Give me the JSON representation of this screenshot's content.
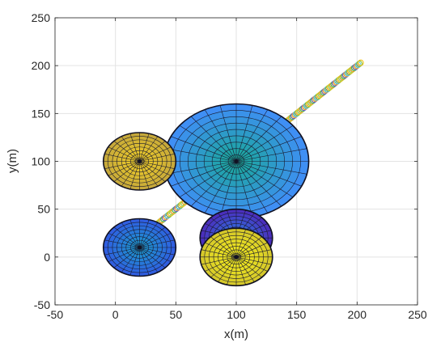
{
  "chart_data": {
    "type": "scatter",
    "title": "",
    "xlabel": "x(m)",
    "ylabel": "y(m)",
    "xlim": [
      -50,
      250
    ],
    "ylim": [
      -50,
      250
    ],
    "xticks": [
      -50,
      0,
      50,
      100,
      150,
      200,
      250
    ],
    "yticks": [
      -50,
      0,
      50,
      100,
      150,
      200,
      250
    ],
    "xtick_labels": [
      "-50",
      "0",
      "50",
      "100",
      "150",
      "200",
      "250"
    ],
    "ytick_labels": [
      "-50",
      "0",
      "50",
      "100",
      "150",
      "200",
      "250"
    ],
    "grid": true,
    "obstacles": [
      {
        "cx": 100,
        "cy": 100,
        "radius": 60,
        "rings": 9,
        "spokes": 28,
        "inner_color": "#1aa79b",
        "outer_color": "#3f8ff4"
      },
      {
        "cx": 20,
        "cy": 100,
        "radius": 30,
        "rings": 8,
        "spokes": 24,
        "inner_color": "#f2d026",
        "outer_color": "#c7a93a"
      },
      {
        "cx": 20,
        "cy": 10,
        "radius": 30,
        "rings": 8,
        "spokes": 24,
        "inner_color": "#1c9bcf",
        "outer_color": "#2f5ee0"
      },
      {
        "cx": 100,
        "cy": 20,
        "radius": 30,
        "rings": 8,
        "spokes": 24,
        "inner_color": "#2b7fe8",
        "outer_color": "#4a2fbd"
      },
      {
        "cx": 100,
        "cy": 0,
        "radius": 30,
        "rings": 8,
        "spokes": 24,
        "inner_color": "#f5ee1c",
        "outer_color": "#d6c92a"
      }
    ],
    "trajectory": {
      "segments": [
        {
          "from": [
            35,
            35
          ],
          "to": [
            60,
            60
          ]
        },
        {
          "from": [
            140,
            140
          ],
          "to": [
            203,
            203
          ]
        }
      ],
      "markers_per_segment": [
        22,
        60
      ],
      "colors": [
        "#7fbf3f",
        "#f0c419",
        "#b4d33a",
        "#f29c30",
        "#3cb371",
        "#6a5acd",
        "#e8a33d",
        "#5bc0de"
      ]
    }
  }
}
